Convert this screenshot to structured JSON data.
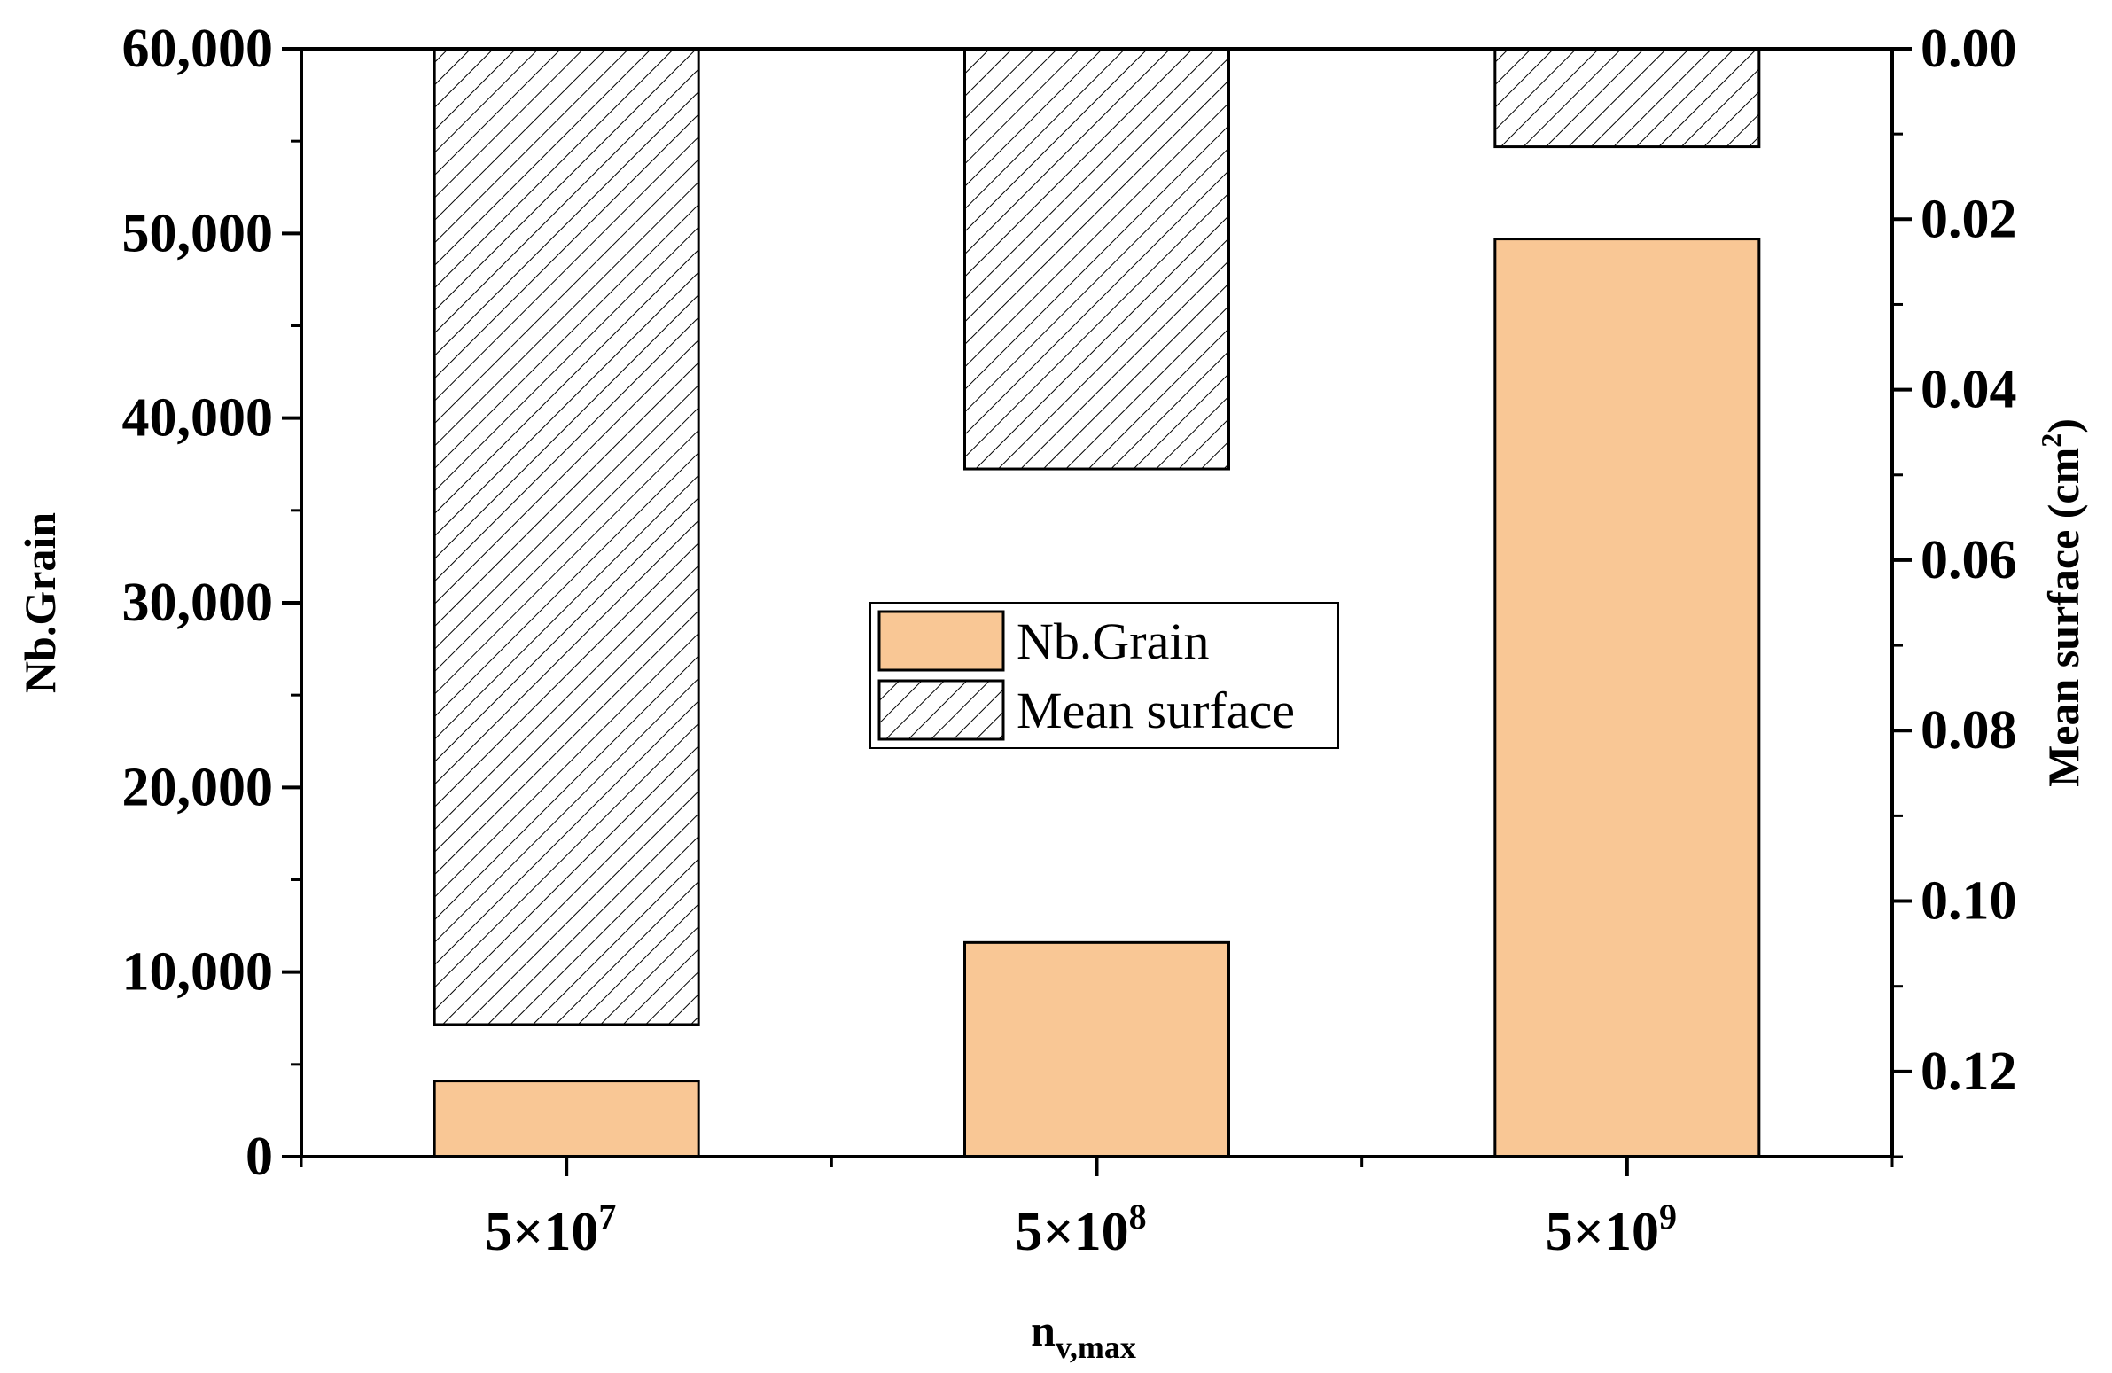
{
  "chart_data": {
    "type": "bar",
    "categories": [
      {
        "base": "5×10",
        "exp": "7"
      },
      {
        "base": "5×10",
        "exp": "8"
      },
      {
        "base": "5×10",
        "exp": "9"
      }
    ],
    "series": [
      {
        "name": "Nb.Grain",
        "axis": "left",
        "values": [
          4100,
          11600,
          49700
        ],
        "color": "#f9c795",
        "pattern": "solid"
      },
      {
        "name": "Mean surface",
        "axis": "right",
        "values": [
          0.1145,
          0.0493,
          0.0115
        ],
        "color": "#ffffff",
        "pattern": "hatch"
      }
    ],
    "xlabel": {
      "base": "n",
      "sub": "v,max"
    },
    "ylabel": "Nb.Grain",
    "y2label": {
      "base": "Mean surface (cm",
      "sup": "2",
      "tail": ")"
    },
    "ylim": [
      0,
      60000
    ],
    "y2lim": [
      0,
      0.13
    ],
    "y2_inverted": true,
    "yticks": [
      "0",
      "10,000",
      "20,000",
      "30,000",
      "40,000",
      "50,000",
      "60,000"
    ],
    "y2ticks": [
      "0.00",
      "0.02",
      "0.04",
      "0.06",
      "0.08",
      "0.10",
      "0.12"
    ],
    "legend": {
      "position": "center",
      "items": [
        "Nb.Grain",
        "Mean surface"
      ]
    },
    "grid": false
  }
}
